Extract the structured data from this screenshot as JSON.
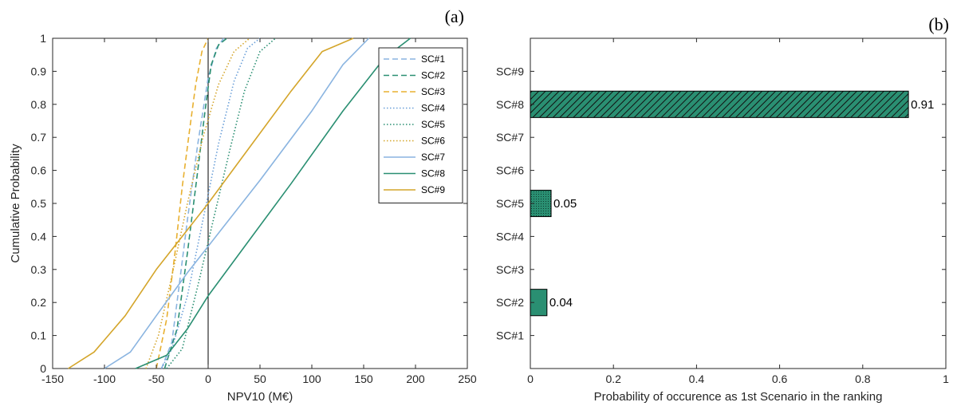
{
  "panel_a": {
    "label": "(a)"
  },
  "panel_b": {
    "label": "(b)"
  },
  "chart_data": [
    {
      "type": "line",
      "title": "",
      "xlabel": "NPV10 (M€)",
      "ylabel": "Cumulative Probability",
      "xlim": [
        -150,
        250
      ],
      "ylim": [
        0,
        1
      ],
      "xticks": [
        -150,
        -100,
        -50,
        0,
        50,
        100,
        150,
        200,
        250
      ],
      "xtick_labels": [
        "-150",
        "-100",
        "-50",
        "0",
        "50",
        "100",
        "150",
        "200",
        "250"
      ],
      "yticks": [
        0,
        0.1,
        0.2,
        0.3,
        0.4,
        0.5,
        0.6,
        0.7,
        0.8,
        0.9,
        1
      ],
      "ytick_labels": [
        "0",
        "0.1",
        "0.2",
        "0.3",
        "0.4",
        "0.5",
        "0.6",
        "0.7",
        "0.8",
        "0.9",
        "1"
      ],
      "grid": false,
      "vertical_reference_line_x": 0,
      "legend_position": "top-right",
      "series": [
        {
          "name": "SC#1",
          "color": "#8ab4e0",
          "style": "dashed",
          "x": [
            -45,
            -35,
            -28,
            -20,
            -10,
            0,
            8,
            15
          ],
          "y": [
            0,
            0.08,
            0.25,
            0.45,
            0.68,
            0.88,
            0.97,
            1
          ]
        },
        {
          "name": "SC#2",
          "color": "#2a8f72",
          "style": "dashed",
          "x": [
            -42,
            -30,
            -20,
            -10,
            -3,
            3,
            10,
            18
          ],
          "y": [
            0,
            0.12,
            0.35,
            0.6,
            0.78,
            0.92,
            0.98,
            1
          ]
        },
        {
          "name": "SC#3",
          "color": "#e8b030",
          "style": "dashed",
          "x": [
            -50,
            -40,
            -32,
            -25,
            -18,
            -12,
            -6,
            0
          ],
          "y": [
            0,
            0.15,
            0.35,
            0.55,
            0.72,
            0.86,
            0.96,
            1
          ]
        },
        {
          "name": "SC#4",
          "color": "#6a9fd8",
          "style": "dotted",
          "x": [
            -45,
            -35,
            -20,
            -5,
            10,
            25,
            38,
            50
          ],
          "y": [
            0,
            0.06,
            0.22,
            0.45,
            0.68,
            0.87,
            0.97,
            1
          ]
        },
        {
          "name": "SC#5",
          "color": "#2a8f72",
          "style": "dotted",
          "x": [
            -40,
            -25,
            -10,
            5,
            20,
            35,
            50,
            65
          ],
          "y": [
            0,
            0.06,
            0.25,
            0.45,
            0.65,
            0.84,
            0.96,
            1
          ]
        },
        {
          "name": "SC#6",
          "color": "#d4a52a",
          "style": "dotted",
          "x": [
            -60,
            -48,
            -35,
            -20,
            -5,
            10,
            25,
            40
          ],
          "y": [
            0,
            0.1,
            0.28,
            0.5,
            0.7,
            0.86,
            0.96,
            1
          ]
        },
        {
          "name": "SC#7",
          "color": "#8ab4e0",
          "style": "solid",
          "x": [
            -100,
            -75,
            -50,
            -20,
            10,
            50,
            100,
            130,
            155
          ],
          "y": [
            0,
            0.05,
            0.16,
            0.29,
            0.41,
            0.57,
            0.78,
            0.92,
            1
          ]
        },
        {
          "name": "SC#8",
          "color": "#2a8f72",
          "style": "solid",
          "x": [
            -70,
            -40,
            -20,
            0,
            40,
            80,
            130,
            170,
            195
          ],
          "y": [
            0,
            0.04,
            0.12,
            0.22,
            0.39,
            0.56,
            0.78,
            0.94,
            1
          ]
        },
        {
          "name": "SC#9",
          "color": "#d4a52a",
          "style": "solid",
          "x": [
            -135,
            -110,
            -80,
            -50,
            -20,
            0,
            40,
            80,
            110,
            140
          ],
          "y": [
            0,
            0.05,
            0.16,
            0.3,
            0.42,
            0.5,
            0.67,
            0.84,
            0.96,
            1
          ]
        }
      ]
    },
    {
      "type": "bar",
      "orientation": "horizontal",
      "title": "",
      "xlabel": "Probability of occurence as 1st Scenario in the ranking",
      "ylabel": "",
      "xlim": [
        0,
        1
      ],
      "xticks": [
        0,
        0.2,
        0.4,
        0.6,
        0.8,
        1
      ],
      "xtick_labels": [
        "0",
        "0.2",
        "0.4",
        "0.6",
        "0.8",
        "1"
      ],
      "categories": [
        "SC#1",
        "SC#2",
        "SC#3",
        "SC#4",
        "SC#5",
        "SC#6",
        "SC#7",
        "SC#8",
        "SC#9"
      ],
      "values": [
        0,
        0.04,
        0,
        0,
        0.05,
        0,
        0,
        0.91,
        0
      ],
      "value_labels": [
        "",
        "0.04",
        "",
        "",
        "0.05",
        "",
        "",
        "0.91",
        ""
      ],
      "bar_color": "#2a8f72",
      "bar_patterns": [
        "none",
        "none",
        "none",
        "none",
        "dots",
        "none",
        "none",
        "hatch",
        "none"
      ],
      "grid": false
    }
  ]
}
